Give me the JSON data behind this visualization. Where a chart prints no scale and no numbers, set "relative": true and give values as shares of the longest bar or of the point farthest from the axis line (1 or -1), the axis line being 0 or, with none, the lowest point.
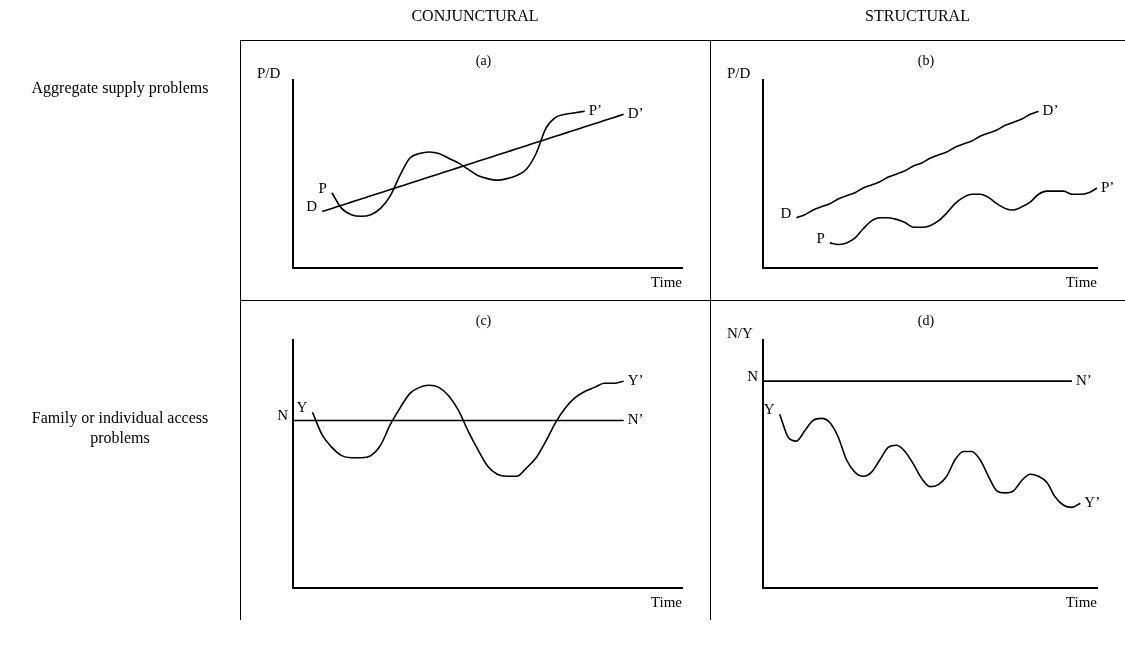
{
  "chart_data": [
    {
      "type": "line",
      "title": "(a)",
      "ylabel": "P/D",
      "xlabel": "Time",
      "relative": true,
      "grid": false,
      "legend": false,
      "marker": "none",
      "line_style": "solid",
      "categories": [
        null,
        null,
        null,
        null,
        null,
        null,
        null,
        null,
        null,
        null,
        null,
        null,
        null,
        null,
        null,
        null,
        null,
        null,
        null,
        null,
        null,
        null,
        null,
        null,
        null,
        null,
        null,
        null,
        null,
        null,
        null,
        null,
        null,
        null,
        null,
        null,
        null,
        null,
        null,
        null,
        null
      ],
      "annotations": [
        "P",
        "P’",
        "D",
        "D’"
      ],
      "series": [
        {
          "color": "#000000",
          "values": [
            null,
            null,
            null,
            null,
            0.48,
            0.38,
            0.34,
            0.33,
            0.34,
            0.38,
            0.46,
            0.59,
            0.7,
            0.73,
            0.74,
            0.73,
            0.7,
            0.67,
            0.63,
            0.59,
            0.57,
            0.56,
            0.57,
            0.59,
            0.63,
            0.73,
            0.89,
            0.96,
            0.98,
            0.99,
            1.0,
            null,
            null,
            null,
            null,
            null,
            null,
            null,
            null,
            null,
            null
          ]
        },
        {
          "color": "#000000",
          "values": [
            null,
            null,
            null,
            0.36,
            0.38,
            0.4,
            0.42,
            0.44,
            0.46,
            0.48,
            0.5,
            0.52,
            0.54,
            0.56,
            0.58,
            0.6,
            0.62,
            0.64,
            0.66,
            0.68,
            0.7,
            0.72,
            0.74,
            0.76,
            0.78,
            0.8,
            0.82,
            0.84,
            0.86,
            0.88,
            0.9,
            0.92,
            0.94,
            0.96,
            0.98,
            null,
            null,
            null,
            null,
            null,
            null
          ]
        }
      ]
    },
    {
      "type": "line",
      "title": "(b)",
      "ylabel": "P/D",
      "xlabel": "Time",
      "relative": true,
      "grid": false,
      "legend": false,
      "marker": "none",
      "line_style": "solid",
      "categories": [
        null,
        null,
        null,
        null,
        null,
        null,
        null,
        null,
        null,
        null,
        null,
        null,
        null,
        null,
        null,
        null,
        null,
        null,
        null,
        null,
        null,
        null,
        null,
        null,
        null,
        null,
        null,
        null,
        null,
        null,
        null,
        null,
        null,
        null,
        null,
        null,
        null,
        null,
        null,
        null,
        null
      ],
      "annotations": [
        "D",
        "D’",
        "P",
        "P’"
      ],
      "series": [
        {
          "color": "#000000",
          "values": [
            null,
            null,
            null,
            null,
            0.32,
            0.34,
            0.37,
            0.39,
            0.41,
            0.44,
            0.46,
            0.48,
            0.51,
            0.53,
            0.55,
            0.58,
            0.6,
            0.62,
            0.65,
            0.67,
            0.7,
            0.72,
            0.74,
            0.77,
            0.79,
            0.81,
            0.84,
            0.86,
            0.88,
            0.91,
            0.93,
            0.95,
            0.98,
            1.0,
            null,
            null,
            null,
            null,
            null,
            null,
            null
          ]
        },
        {
          "color": "#000000",
          "values": [
            null,
            null,
            null,
            null,
            null,
            null,
            null,
            null,
            0.16,
            0.15,
            0.16,
            0.19,
            0.25,
            0.3,
            0.32,
            0.32,
            0.31,
            0.29,
            0.26,
            0.26,
            0.27,
            0.3,
            0.35,
            0.41,
            0.45,
            0.47,
            0.47,
            0.45,
            0.41,
            0.38,
            0.37,
            0.39,
            0.42,
            0.47,
            0.49,
            0.49,
            0.49,
            0.47,
            0.47,
            0.48,
            0.51
          ]
        }
      ]
    },
    {
      "type": "line",
      "title": "(c)",
      "xlabel": "Time",
      "relative": true,
      "grid": false,
      "legend": false,
      "marker": "none",
      "line_style": "solid",
      "categories": [
        null,
        null,
        null,
        null,
        null,
        null,
        null,
        null,
        null,
        null,
        null,
        null,
        null,
        null,
        null,
        null,
        null,
        null,
        null,
        null,
        null,
        null,
        null,
        null,
        null,
        null,
        null,
        null,
        null,
        null,
        null,
        null,
        null,
        null,
        null,
        null,
        null,
        null,
        null,
        null,
        null
      ],
      "annotations": [
        "Y",
        "Y’",
        "N",
        "N’"
      ],
      "series": [
        {
          "color": "#000000",
          "values": [
            null,
            null,
            0.85,
            0.74,
            0.68,
            0.64,
            0.63,
            0.63,
            0.64,
            0.69,
            0.79,
            0.87,
            0.94,
            0.97,
            0.98,
            0.97,
            0.93,
            0.86,
            0.76,
            0.67,
            0.59,
            0.55,
            0.54,
            0.54,
            0.58,
            0.63,
            0.71,
            0.8,
            0.87,
            0.92,
            0.95,
            0.97,
            0.99,
            0.99,
            1.0,
            null,
            null,
            null,
            null,
            null,
            null
          ]
        },
        {
          "color": "#000000",
          "values": [
            0.81,
            0.81,
            0.81,
            0.81,
            0.81,
            0.81,
            0.81,
            0.81,
            0.81,
            0.81,
            0.81,
            0.81,
            0.81,
            0.81,
            0.81,
            0.81,
            0.81,
            0.81,
            0.81,
            0.81,
            0.81,
            0.81,
            0.81,
            0.81,
            0.81,
            0.81,
            0.81,
            0.81,
            0.81,
            0.81,
            0.81,
            0.81,
            0.81,
            0.81,
            0.81,
            null,
            null,
            null,
            null,
            null,
            null
          ]
        }
      ]
    },
    {
      "type": "line",
      "title": "(d)",
      "ylabel": "N/Y",
      "xlabel": "Time",
      "relative": true,
      "grid": false,
      "legend": false,
      "marker": "none",
      "line_style": "solid",
      "categories": [
        null,
        null,
        null,
        null,
        null,
        null,
        null,
        null,
        null,
        null,
        null,
        null,
        null,
        null,
        null,
        null,
        null,
        null,
        null,
        null,
        null,
        null,
        null,
        null,
        null,
        null,
        null,
        null,
        null,
        null,
        null,
        null,
        null,
        null,
        null,
        null,
        null,
        null,
        null,
        null,
        null
      ],
      "annotations": [
        "Y",
        "Y’",
        "N",
        "N’"
      ],
      "series": [
        {
          "color": "#000000",
          "values": [
            null,
            null,
            0.84,
            0.73,
            0.71,
            0.76,
            0.81,
            0.82,
            0.8,
            0.73,
            0.62,
            0.56,
            0.54,
            0.56,
            0.62,
            0.68,
            0.69,
            0.66,
            0.6,
            0.53,
            0.49,
            0.5,
            0.54,
            0.62,
            0.66,
            0.66,
            0.62,
            0.54,
            0.47,
            0.46,
            0.47,
            0.52,
            0.55,
            0.54,
            0.51,
            0.44,
            0.4,
            0.39,
            0.41,
            null,
            null
          ]
        },
        {
          "color": "#000000",
          "values": [
            1.0,
            1.0,
            1.0,
            1.0,
            1.0,
            1.0,
            1.0,
            1.0,
            1.0,
            1.0,
            1.0,
            1.0,
            1.0,
            1.0,
            1.0,
            1.0,
            1.0,
            1.0,
            1.0,
            1.0,
            1.0,
            1.0,
            1.0,
            1.0,
            1.0,
            1.0,
            1.0,
            1.0,
            1.0,
            1.0,
            1.0,
            1.0,
            1.0,
            1.0,
            1.0,
            1.0,
            1.0,
            1.0,
            null,
            null,
            null
          ]
        }
      ]
    },
    {
      "type": "other",
      "annotations": [
        "CONJUNCTURAL",
        "STRUCTURAL",
        "Aggregate supply problems",
        "Family or individual access problems"
      ]
    }
  ]
}
